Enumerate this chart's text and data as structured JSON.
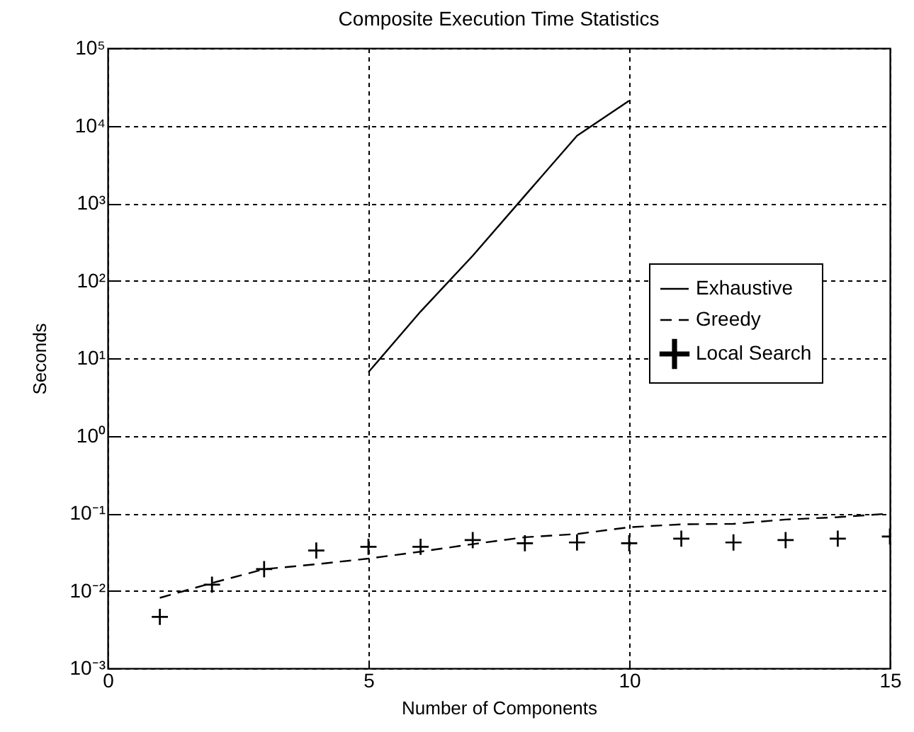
{
  "chart_data": {
    "type": "line",
    "title": "Composite Execution Time Statistics",
    "xlabel": "Number of Components",
    "ylabel": "Seconds",
    "x": [
      1,
      2,
      3,
      4,
      5,
      6,
      7,
      8,
      9,
      10,
      11,
      12,
      13,
      14,
      15
    ],
    "series": [
      {
        "name": "Exhaustive",
        "type": "line",
        "line_style": "solid",
        "color": "#000000",
        "x": [
          5,
          6,
          7,
          8,
          9,
          10
        ],
        "values": [
          6.6,
          40,
          210,
          1250,
          7400,
          21000
        ]
      },
      {
        "name": "Greedy",
        "type": "line",
        "line_style": "dashed",
        "color": "#000000",
        "values": [
          0.0081,
          0.0126,
          0.019,
          0.022,
          0.026,
          0.032,
          0.04,
          0.049,
          0.054,
          0.066,
          0.072,
          0.073,
          0.083,
          0.089,
          0.099
        ]
      },
      {
        "name": "Local Search",
        "type": "scatter",
        "marker": "cross",
        "color": "#000000",
        "values": [
          0.0046,
          0.012,
          0.019,
          0.033,
          0.037,
          0.037,
          0.045,
          0.041,
          0.042,
          0.041,
          0.047,
          0.042,
          0.045,
          0.047,
          0.05
        ]
      }
    ],
    "xlim": [
      0,
      15
    ],
    "xticks": [
      0,
      5,
      10,
      15
    ],
    "ylim": [
      0.001,
      100000
    ],
    "yticks": [
      {
        "value": 0.001,
        "label": "10⁻³"
      },
      {
        "value": 0.01,
        "label": "10⁻²"
      },
      {
        "value": 0.1,
        "label": "10⁻¹"
      },
      {
        "value": 1,
        "label": "10⁰"
      },
      {
        "value": 10,
        "label": "10¹"
      },
      {
        "value": 100,
        "label": "10²"
      },
      {
        "value": 1000,
        "label": "10³"
      },
      {
        "value": 10000,
        "label": "10⁴"
      },
      {
        "value": 100000,
        "label": "10⁵"
      }
    ],
    "log": "y",
    "grid": true,
    "legend": "right"
  }
}
